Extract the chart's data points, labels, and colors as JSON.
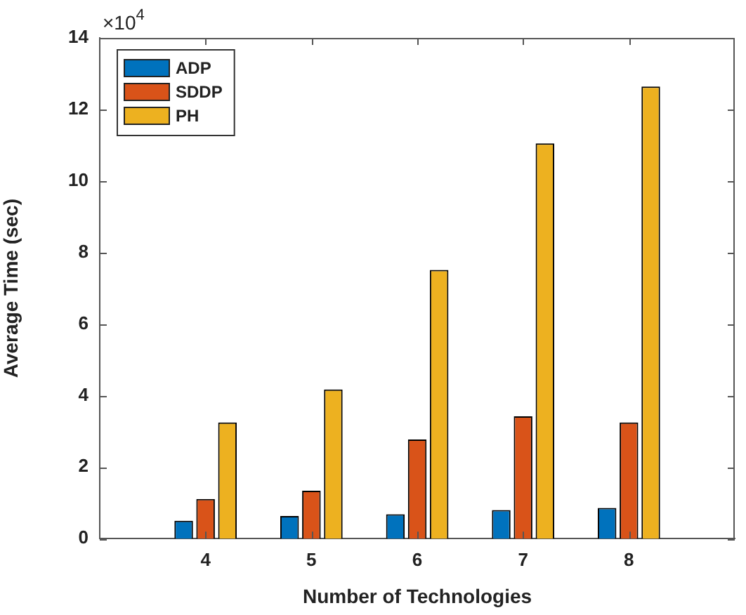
{
  "chart_data": {
    "type": "bar",
    "xlabel": "Number of Technologies",
    "ylabel": "Average Time (sec)",
    "x": [
      4,
      5,
      6,
      7,
      8
    ],
    "xlim": [
      3,
      9
    ],
    "xticks": [
      4,
      5,
      6,
      7,
      8
    ],
    "ylim": [
      0,
      14
    ],
    "yticks": [
      0,
      2,
      4,
      6,
      8,
      10,
      12,
      14
    ],
    "series": [
      {
        "name": "ADP",
        "color": "#0072bd",
        "values": [
          0.5,
          0.63,
          0.68,
          0.8,
          0.86
        ]
      },
      {
        "name": "SDDP",
        "color": "#d95319",
        "values": [
          1.11,
          1.34,
          2.77,
          3.42,
          3.25
        ]
      },
      {
        "name": "PH",
        "color": "#edb120",
        "values": [
          3.25,
          4.17,
          7.51,
          11.05,
          12.64
        ]
      }
    ],
    "legend": "top left",
    "grid": false,
    "annotations": [
      "×10$^{4}$"
    ]
  }
}
